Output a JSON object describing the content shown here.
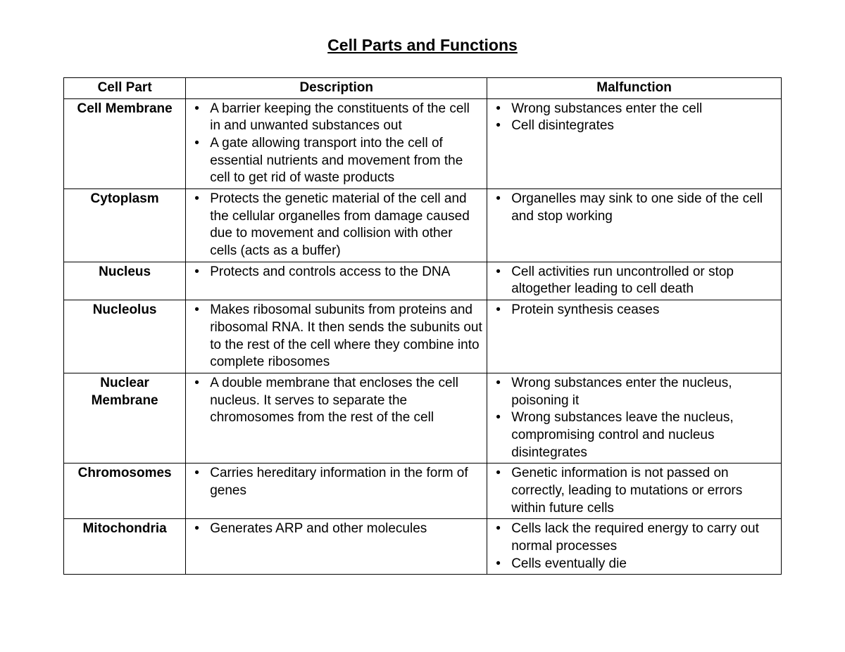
{
  "title": "Cell Parts and Functions",
  "columns": [
    "Cell Part",
    "Description",
    "Malfunction"
  ],
  "rows": [
    {
      "part": "Cell Membrane",
      "description": [
        "A barrier keeping the constituents of the cell in and unwanted substances out",
        "A gate allowing transport into the cell of essential nutrients and movement from the cell to get rid of waste products"
      ],
      "malfunction": [
        "Wrong substances enter the cell",
        "Cell disintegrates"
      ]
    },
    {
      "part": "Cytoplasm",
      "description": [
        "Protects the genetic material of the cell and the cellular organelles from damage caused due to movement and collision with other cells (acts as a buffer)"
      ],
      "malfunction": [
        "Organelles may sink to one side of the cell and stop working"
      ]
    },
    {
      "part": "Nucleus",
      "description": [
        "Protects and controls access to the DNA"
      ],
      "malfunction": [
        "Cell activities run uncontrolled or stop altogether leading to cell death"
      ]
    },
    {
      "part": "Nucleolus",
      "description": [
        "Makes ribosomal subunits from proteins and ribosomal RNA. It then sends the subunits out to the rest of the cell where they combine into complete ribosomes"
      ],
      "malfunction": [
        "Protein synthesis ceases"
      ]
    },
    {
      "part": "Nuclear Membrane",
      "description": [
        "A double membrane that encloses the cell nucleus. It serves to separate the chromosomes from the rest of the cell"
      ],
      "malfunction": [
        "Wrong substances enter the nucleus, poisoning it",
        "Wrong substances leave the nucleus, compromising control and nucleus disintegrates"
      ]
    },
    {
      "part": "Chromosomes",
      "description": [
        "Carries hereditary information in the form of genes"
      ],
      "malfunction": [
        "Genetic information is not passed on correctly, leading to mutations or errors within future cells"
      ]
    },
    {
      "part": "Mitochondria",
      "description": [
        "Generates ARP and other molecules"
      ],
      "malfunction": [
        "Cells lack the required energy to carry out normal processes",
        "Cells eventually die"
      ]
    }
  ],
  "styling": {
    "background_color": "#ffffff",
    "text_color": "#000000",
    "border_color": "#000000",
    "title_fontsize": 23,
    "body_fontsize": 19,
    "font_family": "Arial",
    "column_widths_pct": [
      17,
      42,
      41
    ]
  }
}
